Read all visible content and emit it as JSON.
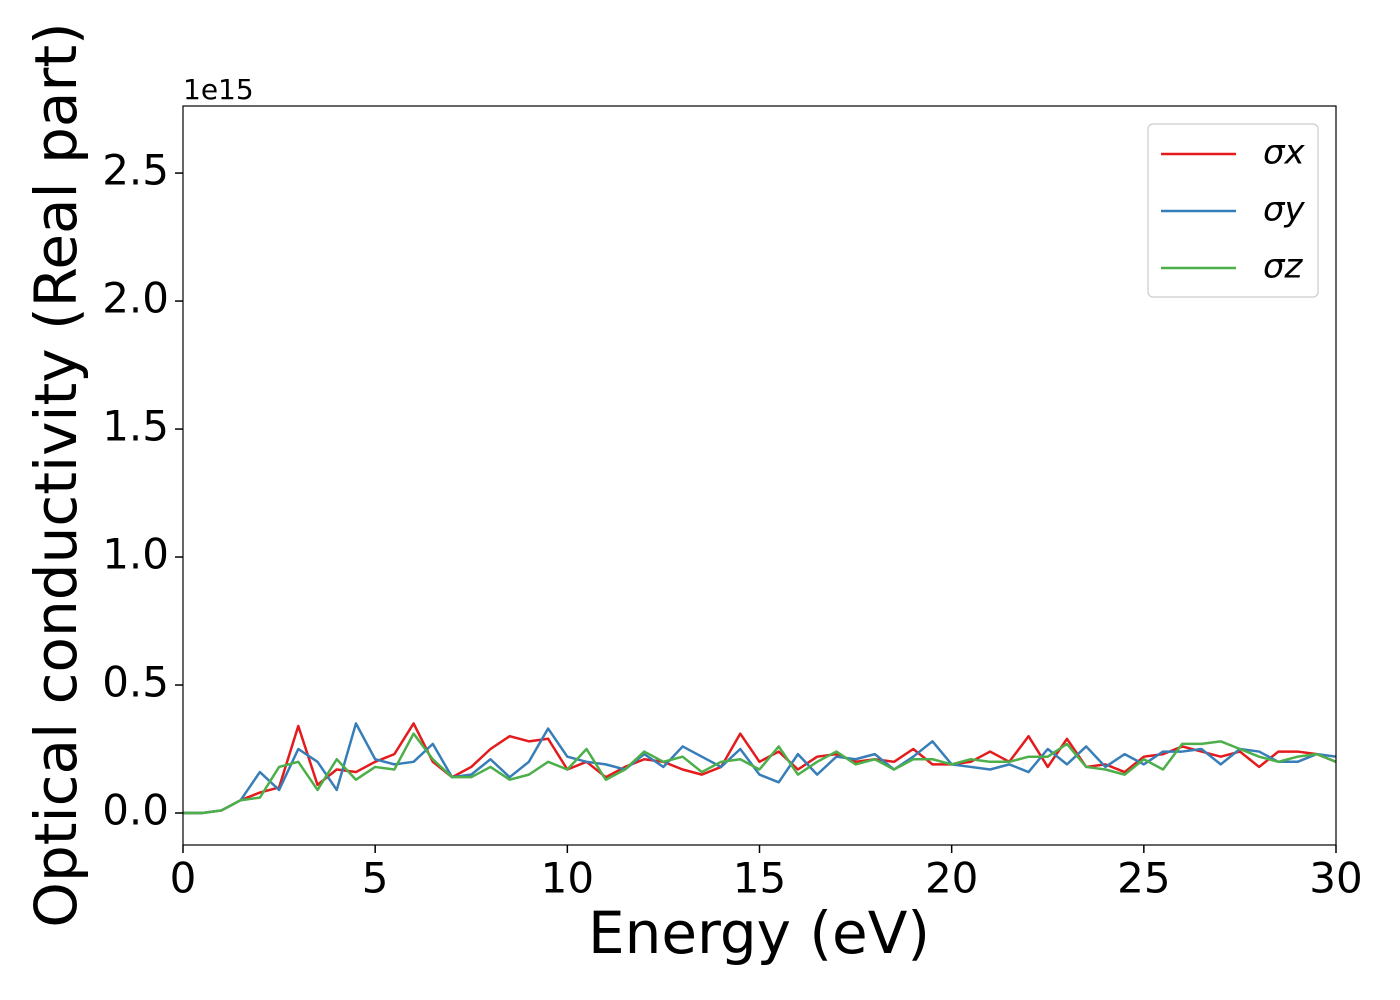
{
  "chart_data": {
    "type": "line",
    "xlabel": "Energy (eV)",
    "ylabel": "Optical conductivity (Real part)",
    "y_offset_label": "1e15",
    "x": [
      0,
      0.5,
      1,
      1.5,
      2,
      2.5,
      3,
      3.5,
      4,
      4.5,
      5,
      5.5,
      6,
      6.5,
      7,
      7.5,
      8,
      8.5,
      9,
      9.5,
      10,
      10.5,
      11,
      11.5,
      12,
      12.5,
      13,
      13.5,
      14,
      14.5,
      15,
      15.5,
      16,
      16.5,
      17,
      17.5,
      18,
      18.5,
      19,
      19.5,
      20,
      20.5,
      21,
      21.5,
      22,
      22.5,
      23,
      23.5,
      24,
      24.5,
      25,
      25.5,
      26,
      26.5,
      27,
      27.5,
      28,
      28.5,
      29,
      29.5,
      30
    ],
    "series": [
      {
        "name": "σx",
        "color": "#e41a1c",
        "values": [
          0,
          0,
          0.01,
          0.05,
          0.08,
          0.1,
          0.34,
          0.11,
          0.17,
          0.16,
          0.2,
          0.23,
          0.35,
          0.2,
          0.14,
          0.18,
          0.25,
          0.3,
          0.28,
          0.29,
          0.17,
          0.2,
          0.14,
          0.18,
          0.21,
          0.2,
          0.17,
          0.15,
          0.18,
          0.31,
          0.2,
          0.24,
          0.17,
          0.22,
          0.23,
          0.2,
          0.21,
          0.2,
          0.25,
          0.19,
          0.19,
          0.2,
          0.24,
          0.2,
          0.3,
          0.18,
          0.29,
          0.18,
          0.19,
          0.16,
          0.22,
          0.23,
          0.26,
          0.24,
          0.22,
          0.24,
          0.18,
          0.24,
          0.24,
          0.23,
          0.2
        ]
      },
      {
        "name": "σy",
        "color": "#377eb8",
        "values": [
          0,
          0,
          0.01,
          0.05,
          0.16,
          0.09,
          0.25,
          0.2,
          0.09,
          0.35,
          0.21,
          0.19,
          0.2,
          0.27,
          0.14,
          0.15,
          0.21,
          0.14,
          0.2,
          0.33,
          0.22,
          0.2,
          0.19,
          0.17,
          0.23,
          0.18,
          0.26,
          0.22,
          0.18,
          0.25,
          0.15,
          0.12,
          0.23,
          0.15,
          0.22,
          0.21,
          0.23,
          0.17,
          0.22,
          0.28,
          0.19,
          0.18,
          0.17,
          0.19,
          0.16,
          0.25,
          0.19,
          0.26,
          0.18,
          0.23,
          0.19,
          0.24,
          0.24,
          0.25,
          0.19,
          0.25,
          0.24,
          0.2,
          0.2,
          0.23,
          0.22
        ]
      },
      {
        "name": "σz",
        "color": "#4daf4a",
        "values": [
          0,
          0,
          0.01,
          0.05,
          0.06,
          0.18,
          0.2,
          0.09,
          0.21,
          0.13,
          0.18,
          0.17,
          0.31,
          0.21,
          0.14,
          0.14,
          0.18,
          0.13,
          0.15,
          0.2,
          0.17,
          0.25,
          0.13,
          0.17,
          0.24,
          0.2,
          0.22,
          0.16,
          0.2,
          0.21,
          0.17,
          0.26,
          0.15,
          0.2,
          0.24,
          0.19,
          0.21,
          0.17,
          0.21,
          0.21,
          0.19,
          0.21,
          0.2,
          0.2,
          0.22,
          0.22,
          0.27,
          0.18,
          0.17,
          0.15,
          0.21,
          0.17,
          0.27,
          0.27,
          0.28,
          0.25,
          0.22,
          0.2,
          0.22,
          0.23,
          0.2
        ]
      }
    ],
    "xlim": [
      0,
      30
    ],
    "xticks": [
      0,
      5,
      10,
      15,
      20,
      25,
      30
    ],
    "ylim": [
      -0.125,
      2.762
    ],
    "yticks": [
      {
        "value": 0,
        "label": "0.0"
      },
      {
        "value": 0.5,
        "label": "0.5"
      },
      {
        "value": 1,
        "label": "1.0"
      },
      {
        "value": 1.5,
        "label": "1.5"
      },
      {
        "value": 2,
        "label": "2.0"
      },
      {
        "value": 2.5,
        "label": "2.5"
      }
    ],
    "legend": "upper right"
  }
}
